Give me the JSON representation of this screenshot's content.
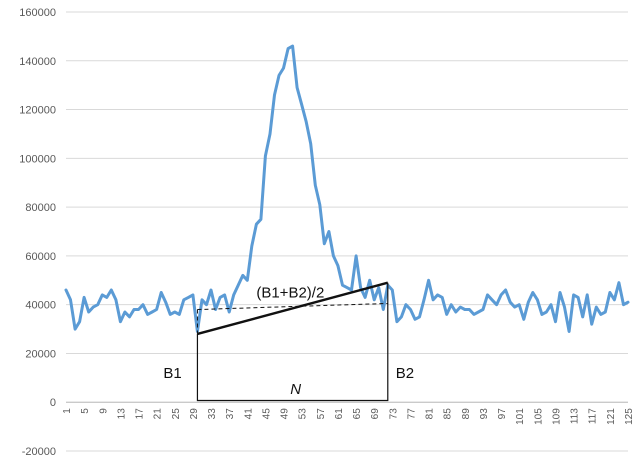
{
  "chart_data": {
    "type": "line",
    "title": "",
    "xlabel": "",
    "ylabel": "",
    "xlim": [
      1,
      125
    ],
    "ylim": [
      -20000,
      160000
    ],
    "y_ticks": [
      -20000,
      0,
      20000,
      40000,
      60000,
      80000,
      100000,
      120000,
      140000,
      160000
    ],
    "y_tick_labels": [
      "-20000",
      "0",
      "20000",
      "40000",
      "60000",
      "80000",
      "100000",
      "120000",
      "140000",
      "160000"
    ],
    "x_tick_labels": [
      "1",
      "5",
      "9",
      "13",
      "17",
      "21",
      "25",
      "29",
      "33",
      "37",
      "41",
      "45",
      "49",
      "53",
      "57",
      "61",
      "65",
      "69",
      "73",
      "77",
      "81",
      "85",
      "89",
      "93",
      "97",
      "101",
      "105",
      "109",
      "113",
      "117",
      "121",
      "125"
    ],
    "grid": "horizontal",
    "legend": "none",
    "series": [
      {
        "color": "#5b9bd5",
        "x": [
          1,
          2,
          3,
          4,
          5,
          6,
          7,
          8,
          9,
          10,
          11,
          12,
          13,
          14,
          15,
          16,
          17,
          18,
          19,
          20,
          21,
          22,
          23,
          24,
          25,
          26,
          27,
          28,
          29,
          30,
          31,
          32,
          33,
          34,
          35,
          36,
          37,
          38,
          39,
          40,
          41,
          42,
          43,
          44,
          45,
          46,
          47,
          48,
          49,
          50,
          51,
          52,
          53,
          54,
          55,
          56,
          57,
          58,
          59,
          60,
          61,
          62,
          63,
          64,
          65,
          66,
          67,
          68,
          69,
          70,
          71,
          72,
          73,
          74,
          75,
          76,
          77,
          78,
          79,
          80,
          81,
          82,
          83,
          84,
          85,
          86,
          87,
          88,
          89,
          90,
          91,
          92,
          93,
          94,
          95,
          96,
          97,
          98,
          99,
          100,
          101,
          102,
          103,
          104,
          105,
          106,
          107,
          108,
          109,
          110,
          111,
          112,
          113,
          114,
          115,
          116,
          117,
          118,
          119,
          120,
          121,
          122,
          123,
          124,
          125
        ],
        "values": [
          46000,
          42000,
          30000,
          33000,
          43000,
          37000,
          39000,
          40000,
          44000,
          43000,
          46000,
          42000,
          33000,
          37000,
          35000,
          38000,
          38000,
          40000,
          36000,
          37000,
          38000,
          45000,
          41000,
          36000,
          37000,
          36000,
          42000,
          43000,
          44000,
          29000,
          42000,
          40000,
          46000,
          38000,
          43000,
          44000,
          37000,
          44000,
          48000,
          52000,
          50000,
          64000,
          73000,
          75000,
          101000,
          110000,
          126000,
          134000,
          137000,
          145000,
          146000,
          129000,
          122000,
          115000,
          106000,
          89000,
          81000,
          65000,
          70000,
          60000,
          56000,
          48000,
          47000,
          46000,
          60000,
          47000,
          43000,
          50000,
          42000,
          47000,
          38000,
          48000,
          46000,
          33000,
          35000,
          40000,
          38000,
          34000,
          35000,
          42000,
          50000,
          42000,
          44000,
          43000,
          36000,
          40000,
          37000,
          39000,
          38000,
          38000,
          36000,
          37000,
          38000,
          44000,
          42000,
          40000,
          44000,
          46000,
          41000,
          39000,
          40000,
          34000,
          41000,
          45000,
          42000,
          36000,
          37000,
          40000,
          33000,
          45000,
          39000,
          29000,
          44000,
          43000,
          35000,
          44000,
          32000,
          39000,
          36000,
          37000,
          45000,
          42000,
          49000,
          40000,
          41000
        ]
      }
    ],
    "annotations": {
      "b1_label": "B1",
      "b2_label": "B2",
      "n_label": "N",
      "avg_label": "(B1+B2)/2",
      "b1_x": 30,
      "b2_x": 72,
      "b1_value": 28000,
      "b2_value": 49000,
      "avg_left_value": 38000,
      "avg_right_value": 40500
    }
  }
}
